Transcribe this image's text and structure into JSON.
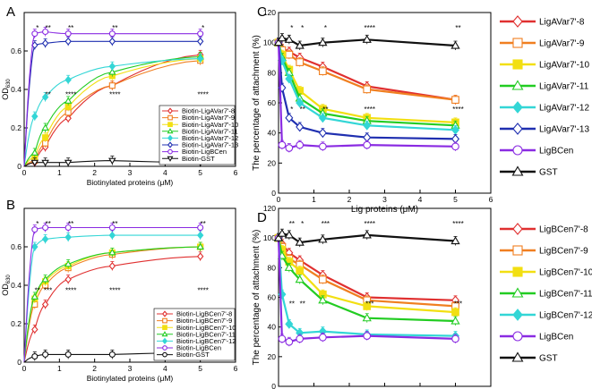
{
  "figure": {
    "panel_letters": [
      "A",
      "B",
      "C",
      "D"
    ]
  },
  "chart_data": [
    {
      "panel": "A",
      "type": "line",
      "xlabel": "Biotinylated proteins (μM)",
      "ylabel": "OD630",
      "ylabel_main": "OD",
      "ylabel_sub": "630",
      "xlim": [
        0,
        6
      ],
      "ylim": [
        0,
        0.8
      ],
      "xticks": [
        0,
        1,
        2,
        3,
        4,
        5,
        6
      ],
      "yticks": [
        0,
        0.2,
        0.4,
        0.6
      ],
      "legend_position": "bottom-right",
      "x": [
        0.3,
        0.6,
        1.25,
        2.5,
        5
      ],
      "series": [
        {
          "name": "Biotin-LigAVar7'-8",
          "color": "#e03030",
          "marker": "diamond",
          "fill": false,
          "values": [
            0.02,
            0.1,
            0.25,
            0.42,
            0.58
          ]
        },
        {
          "name": "Biotin-LigAVar7'-9",
          "color": "#f07f20",
          "marker": "square",
          "fill": false,
          "values": [
            0.03,
            0.12,
            0.28,
            0.42,
            0.55
          ]
        },
        {
          "name": "Biotin-LigAVar7'-10",
          "color": "#f2df12",
          "marker": "square",
          "fill": true,
          "values": [
            0.05,
            0.15,
            0.31,
            0.47,
            0.56
          ]
        },
        {
          "name": "Biotin-LigAVar7'-11",
          "color": "#22cc22",
          "marker": "triangle",
          "fill": false,
          "values": [
            0.07,
            0.2,
            0.34,
            0.49,
            0.57
          ]
        },
        {
          "name": "Biotin-LigAVar7'-12",
          "color": "#33d6d6",
          "marker": "diamond",
          "fill": true,
          "values": [
            0.26,
            0.36,
            0.45,
            0.52,
            0.56
          ]
        },
        {
          "name": "Biotin-LigAVar7'-13",
          "color": "#1f2fb0",
          "marker": "diamond",
          "fill": false,
          "values": [
            0.63,
            0.64,
            0.65,
            0.65,
            0.65
          ]
        },
        {
          "name": "Biotin-LigBCen",
          "color": "#8a2be2",
          "marker": "circle",
          "fill": false,
          "values": [
            0.69,
            0.7,
            0.69,
            0.69,
            0.69
          ]
        },
        {
          "name": "Biotin-GST",
          "color": "#111111",
          "marker": "triangle-down",
          "fill": false,
          "values": [
            0.02,
            0.02,
            0.02,
            0.03,
            0.02
          ]
        }
      ],
      "annotations": [
        {
          "x": 0.3,
          "text": "*"
        },
        {
          "x": 0.6,
          "text": "**"
        },
        {
          "x": 1.25,
          "text": "**"
        },
        {
          "x": 2.5,
          "text": "**"
        },
        {
          "x": 5,
          "text": "*"
        },
        {
          "x": 0.6,
          "text": "**"
        },
        {
          "x": 1.25,
          "text": "****"
        },
        {
          "x": 2.5,
          "text": "****"
        },
        {
          "x": 5,
          "text": "****"
        }
      ]
    },
    {
      "panel": "B",
      "type": "line",
      "xlabel": "Biotinylated proteins (μM)",
      "ylabel": "OD630",
      "ylabel_main": "OD",
      "ylabel_sub": "630",
      "xlim": [
        0,
        6
      ],
      "ylim": [
        0,
        0.8
      ],
      "xticks": [
        0,
        1,
        2,
        3,
        4,
        5,
        6
      ],
      "yticks": [
        0,
        0.2,
        0.4,
        0.6
      ],
      "legend_position": "bottom-right",
      "x": [
        0.3,
        0.6,
        1.25,
        2.5,
        5
      ],
      "series": [
        {
          "name": "Biotin-LigBCen7'-8",
          "color": "#e03030",
          "marker": "diamond",
          "fill": false,
          "values": [
            0.17,
            0.3,
            0.43,
            0.5,
            0.55
          ]
        },
        {
          "name": "Biotin-LigBCen7'-9",
          "color": "#f07f20",
          "marker": "square",
          "fill": false,
          "values": [
            0.3,
            0.4,
            0.49,
            0.56,
            0.6
          ]
        },
        {
          "name": "Biotin-LigBCen7'-10",
          "color": "#f2df12",
          "marker": "square",
          "fill": true,
          "values": [
            0.33,
            0.42,
            0.5,
            0.57,
            0.6
          ]
        },
        {
          "name": "Biotin-LigBCen7'-11",
          "color": "#22cc22",
          "marker": "triangle",
          "fill": false,
          "values": [
            0.34,
            0.43,
            0.51,
            0.57,
            0.6
          ]
        },
        {
          "name": "Biotin-LigBCen7'-12",
          "color": "#33d6d6",
          "marker": "diamond",
          "fill": true,
          "values": [
            0.6,
            0.64,
            0.65,
            0.66,
            0.66
          ]
        },
        {
          "name": "Biotin-LigBCen",
          "color": "#8a2be2",
          "marker": "circle",
          "fill": false,
          "values": [
            0.69,
            0.7,
            0.7,
            0.7,
            0.7
          ]
        },
        {
          "name": "Biotin-GST",
          "color": "#111111",
          "marker": "circle",
          "fill": false,
          "values": [
            0.03,
            0.04,
            0.04,
            0.04,
            0.05
          ]
        }
      ],
      "annotations": [
        {
          "x": 0.3,
          "text": "*"
        },
        {
          "x": 0.6,
          "text": "**"
        },
        {
          "x": 1.25,
          "text": "**"
        },
        {
          "x": 2.5,
          "text": "**"
        },
        {
          "x": 5,
          "text": "**"
        },
        {
          "x": 0.3,
          "text": "**"
        },
        {
          "x": 0.6,
          "text": "***"
        },
        {
          "x": 1.25,
          "text": "****"
        },
        {
          "x": 2.5,
          "text": "****"
        },
        {
          "x": 5,
          "text": "****"
        }
      ]
    },
    {
      "panel": "C",
      "type": "line",
      "xlabel": "Lig proteins (μM)",
      "ylabel": "The percentage of attachment (%)",
      "xlim": [
        0,
        6
      ],
      "ylim": [
        0,
        120
      ],
      "xticks": [
        0,
        1,
        2,
        3,
        4,
        5,
        6
      ],
      "yticks": [
        0,
        20,
        40,
        60,
        80,
        100,
        120
      ],
      "legend_position": "right-outside",
      "x": [
        0,
        0.1,
        0.3,
        0.6,
        1.25,
        2.5,
        5
      ],
      "series": [
        {
          "name": "LigAVar7'-8",
          "color": "#e03030",
          "marker": "diamond",
          "fill": false,
          "values": [
            100,
            96,
            94,
            90,
            84,
            71,
            62
          ]
        },
        {
          "name": "LigAVar7'-9",
          "color": "#f07f20",
          "marker": "square",
          "fill": false,
          "values": [
            100,
            95,
            92,
            87,
            81,
            69,
            62
          ]
        },
        {
          "name": "LigAVar7'-10",
          "color": "#f2df12",
          "marker": "square",
          "fill": true,
          "values": [
            100,
            92,
            82,
            68,
            56,
            50,
            47
          ]
        },
        {
          "name": "LigAVar7'-11",
          "color": "#22cc22",
          "marker": "triangle",
          "fill": false,
          "values": [
            100,
            90,
            80,
            63,
            53,
            48,
            45
          ]
        },
        {
          "name": "LigAVar7'-12",
          "color": "#33d6d6",
          "marker": "diamond",
          "fill": true,
          "values": [
            100,
            88,
            76,
            60,
            50,
            45,
            42
          ]
        },
        {
          "name": "LigAVar7'-13",
          "color": "#1f2fb0",
          "marker": "diamond",
          "fill": false,
          "values": [
            100,
            70,
            50,
            44,
            40,
            37,
            36
          ]
        },
        {
          "name": "LigBCen",
          "color": "#8a2be2",
          "marker": "circle",
          "fill": false,
          "values": [
            100,
            32,
            30,
            32,
            31,
            32,
            31
          ]
        },
        {
          "name": "GST",
          "color": "#111111",
          "marker": "triangle",
          "fill": false,
          "values": [
            100,
            103,
            102,
            98,
            100,
            102,
            98
          ]
        }
      ],
      "annotations": [
        {
          "x": 2.5,
          "text": "****"
        },
        {
          "x": 5,
          "text": "**"
        },
        {
          "x": 0.3,
          "text": "*"
        },
        {
          "x": 0.6,
          "text": "*"
        },
        {
          "x": 1.25,
          "text": "*"
        },
        {
          "x": 0.3,
          "text": "*"
        },
        {
          "x": 0.6,
          "text": "**"
        },
        {
          "x": 1.25,
          "text": "**"
        },
        {
          "x": 2.5,
          "text": "****"
        },
        {
          "x": 5,
          "text": "****"
        }
      ]
    },
    {
      "panel": "D",
      "type": "line",
      "xlabel": "Lig proteins (μM)",
      "ylabel": "The percentage of attachment (%)",
      "xlim": [
        0,
        6
      ],
      "ylim": [
        0,
        120
      ],
      "xticks": [
        0,
        1,
        2,
        3,
        4,
        5,
        6
      ],
      "yticks": [
        0,
        20,
        40,
        60,
        80,
        100,
        120
      ],
      "legend_position": "right-outside",
      "x": [
        0,
        0.1,
        0.3,
        0.6,
        1.25,
        2.5,
        5
      ],
      "series": [
        {
          "name": "LigBCen7'-8",
          "color": "#e03030",
          "marker": "diamond",
          "fill": false,
          "values": [
            100,
            96,
            90,
            85,
            75,
            60,
            58
          ]
        },
        {
          "name": "LigBCen7'-9",
          "color": "#f07f20",
          "marker": "square",
          "fill": false,
          "values": [
            100,
            94,
            86,
            82,
            72,
            58,
            54
          ]
        },
        {
          "name": "LigBCen7'-10",
          "color": "#f2df12",
          "marker": "square",
          "fill": true,
          "values": [
            100,
            92,
            84,
            78,
            62,
            54,
            50
          ]
        },
        {
          "name": "LigBCen7'-11",
          "color": "#22cc22",
          "marker": "triangle",
          "fill": false,
          "values": [
            100,
            88,
            80,
            72,
            58,
            46,
            44
          ]
        },
        {
          "name": "LigBCen7'-12",
          "color": "#33d6d6",
          "marker": "diamond",
          "fill": true,
          "values": [
            100,
            62,
            42,
            36,
            37,
            35,
            34
          ]
        },
        {
          "name": "LigBCen",
          "color": "#8a2be2",
          "marker": "circle",
          "fill": false,
          "values": [
            100,
            32,
            30,
            32,
            33,
            34,
            32
          ]
        },
        {
          "name": "GST",
          "color": "#111111",
          "marker": "triangle",
          "fill": false,
          "values": [
            100,
            103,
            102,
            97,
            99,
            102,
            98
          ]
        }
      ],
      "annotations": [
        {
          "x": 2.5,
          "text": "****"
        },
        {
          "x": 5,
          "text": "****"
        },
        {
          "x": 0.3,
          "text": "**"
        },
        {
          "x": 0.6,
          "text": "*"
        },
        {
          "x": 0.3,
          "text": "**"
        },
        {
          "x": 0.6,
          "text": "**"
        },
        {
          "x": 1.25,
          "text": "***"
        },
        {
          "x": 2.5,
          "text": "***"
        },
        {
          "x": 5,
          "text": "***"
        }
      ]
    }
  ]
}
